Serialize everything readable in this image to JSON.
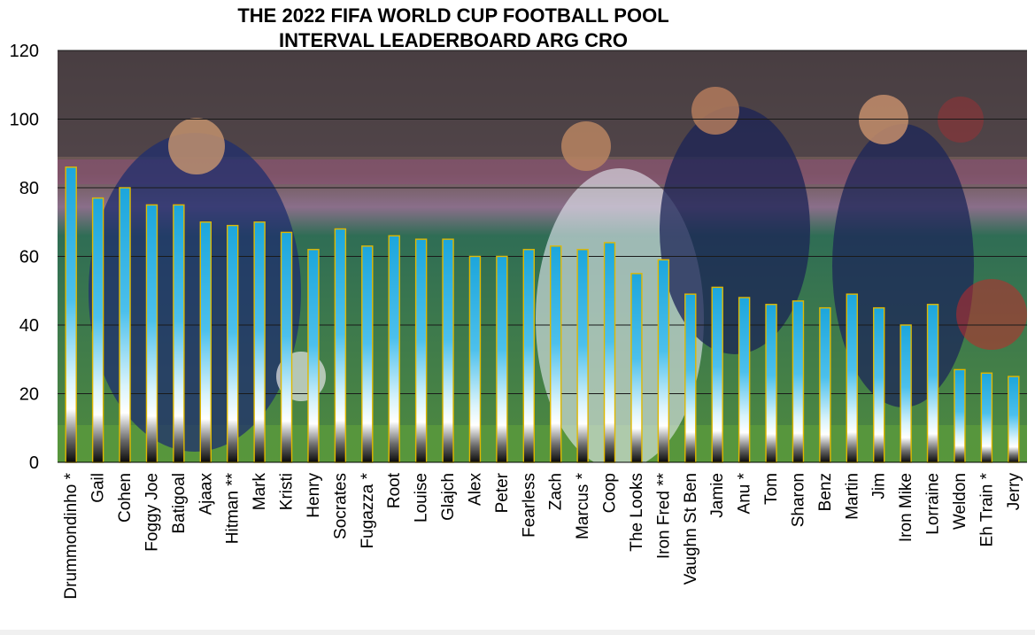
{
  "chart_data": {
    "type": "bar",
    "title_line1": "THE 2022 FIFA WORLD CUP FOOTBALL POOL",
    "title_line2": "INTERVAL LEADERBOARD ARG CRO",
    "xlabel": "",
    "ylabel": "",
    "ylim": [
      0,
      120
    ],
    "yticks": [
      "0",
      "20",
      "40",
      "60",
      "80",
      "100",
      "120"
    ],
    "grid": true,
    "background": "photo of a football match (Argentina vs Croatia players)",
    "colors": {
      "bar_top": "#1ca6dc",
      "bar_mid": "#bfe9f7",
      "bar_bottom": "#111111",
      "bar_outline": "#e0b800"
    },
    "categories": [
      "Drummondinho *",
      "Gail",
      "Cohen",
      "Foggy Joe",
      "Batigoal",
      "Ajaax",
      "Hitman **",
      "Mark",
      "Kristi",
      "Henry",
      "Socrates",
      "Fugazza *",
      "Root",
      "Louise",
      "Glajch",
      "Alex",
      "Peter",
      "Fearless",
      "Zach",
      "Marcus *",
      "Coop",
      "The Looks",
      "Iron Fred **",
      "Vaughn St Ben",
      "Jamie",
      "Anu *",
      "Tom",
      "Sharon",
      "Benz",
      "Martin",
      "Jim",
      "Iron Mike",
      "Lorraine",
      "Weldon",
      "Eh Train *",
      "Jerry"
    ],
    "values": [
      86,
      77,
      80,
      75,
      75,
      70,
      69,
      70,
      67,
      62,
      68,
      63,
      66,
      65,
      65,
      60,
      60,
      62,
      63,
      62,
      64,
      55,
      59,
      49,
      51,
      48,
      46,
      47,
      45,
      49,
      45,
      40,
      46,
      27,
      26,
      25
    ]
  }
}
